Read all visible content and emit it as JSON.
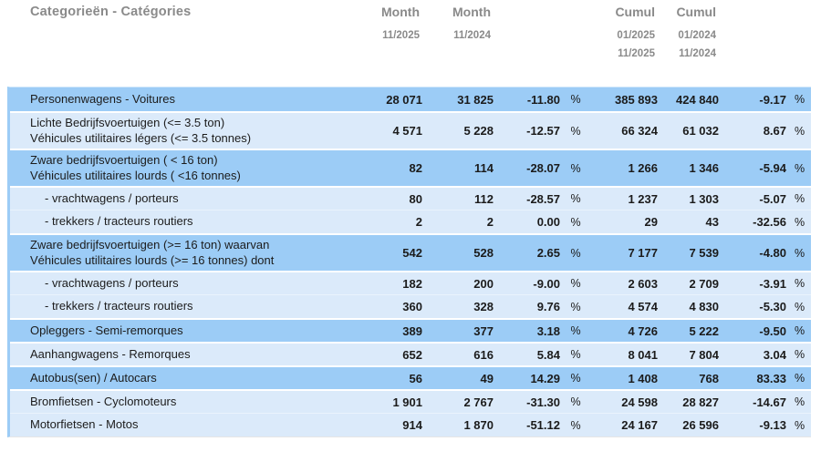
{
  "header": {
    "category_label": "Categorieën - Catégories",
    "percent_symbol": "%",
    "columns": [
      {
        "title": "Month",
        "sub": [
          "11/2025"
        ]
      },
      {
        "title": "Month",
        "sub": [
          "11/2024"
        ]
      },
      {
        "title": "Cumul",
        "sub": [
          "01/2025",
          "11/2025"
        ]
      },
      {
        "title": "Cumul",
        "sub": [
          "01/2024",
          "11/2024"
        ]
      }
    ]
  },
  "colors": {
    "row_dark": "#9cccf6",
    "row_light": "#dbeafa",
    "accent_strip": "#9cccf6",
    "header_text": "#8a8a8a",
    "data_text": "#1b1b1b"
  },
  "rows": [
    {
      "label_lines": [
        "Personenwagens - Voitures"
      ],
      "indent": false,
      "shade": "dark",
      "month_current": "28 071",
      "month_previous": "31 825",
      "month_pct": "-11.80",
      "cumul_current": "385 893",
      "cumul_previous": "424 840",
      "cumul_pct": "-9.17"
    },
    {
      "label_lines": [
        "Lichte Bedrijfsvoertuigen (<= 3.5 ton)",
        "Véhicules utilitaires légers (<= 3.5 tonnes)"
      ],
      "indent": false,
      "shade": "light",
      "month_current": "4 571",
      "month_previous": "5 228",
      "month_pct": "-12.57",
      "cumul_current": "66 324",
      "cumul_previous": "61 032",
      "cumul_pct": "8.67"
    },
    {
      "label_lines": [
        "Zware bedrijfsvoertuigen ( < 16 ton)",
        "Véhicules utilitaires lourds ( <16 tonnes)"
      ],
      "indent": false,
      "shade": "dark",
      "month_current": "82",
      "month_previous": "114",
      "month_pct": "-28.07",
      "cumul_current": "1 266",
      "cumul_previous": "1 346",
      "cumul_pct": "-5.94"
    },
    {
      "label_lines": [
        "- vrachtwagens / porteurs"
      ],
      "indent": true,
      "shade": "light",
      "month_current": "80",
      "month_previous": "112",
      "month_pct": "-28.57",
      "cumul_current": "1 237",
      "cumul_previous": "1 303",
      "cumul_pct": "-5.07"
    },
    {
      "label_lines": [
        "- trekkers / tracteurs routiers"
      ],
      "indent": true,
      "shade": "light",
      "month_current": "2",
      "month_previous": "2",
      "month_pct": "0.00",
      "cumul_current": "29",
      "cumul_previous": "43",
      "cumul_pct": "-32.56"
    },
    {
      "label_lines": [
        "Zware bedrijfsvoertuigen (>= 16 ton) waarvan",
        "Véhicules utilitaires lourds (>= 16 tonnes) dont"
      ],
      "indent": false,
      "shade": "dark",
      "month_current": "542",
      "month_previous": "528",
      "month_pct": "2.65",
      "cumul_current": "7 177",
      "cumul_previous": "7 539",
      "cumul_pct": "-4.80"
    },
    {
      "label_lines": [
        "- vrachtwagens / porteurs"
      ],
      "indent": true,
      "shade": "light",
      "month_current": "182",
      "month_previous": "200",
      "month_pct": "-9.00",
      "cumul_current": "2 603",
      "cumul_previous": "2 709",
      "cumul_pct": "-3.91"
    },
    {
      "label_lines": [
        "- trekkers / tracteurs routiers"
      ],
      "indent": true,
      "shade": "light",
      "month_current": "360",
      "month_previous": "328",
      "month_pct": "9.76",
      "cumul_current": "4 574",
      "cumul_previous": "4 830",
      "cumul_pct": "-5.30"
    },
    {
      "label_lines": [
        "Opleggers - Semi-remorques"
      ],
      "indent": false,
      "shade": "dark",
      "month_current": "389",
      "month_previous": "377",
      "month_pct": "3.18",
      "cumul_current": "4 726",
      "cumul_previous": "5 222",
      "cumul_pct": "-9.50"
    },
    {
      "label_lines": [
        "Aanhangwagens - Remorques"
      ],
      "indent": false,
      "shade": "light",
      "month_current": "652",
      "month_previous": "616",
      "month_pct": "5.84",
      "cumul_current": "8 041",
      "cumul_previous": "7 804",
      "cumul_pct": "3.04"
    },
    {
      "label_lines": [
        "Autobus(sen) / Autocars"
      ],
      "indent": false,
      "shade": "dark",
      "month_current": "56",
      "month_previous": "49",
      "month_pct": "14.29",
      "cumul_current": "1 408",
      "cumul_previous": "768",
      "cumul_pct": "83.33"
    },
    {
      "label_lines": [
        "Bromfietsen - Cyclomoteurs"
      ],
      "indent": false,
      "shade": "light",
      "month_current": "1 901",
      "month_previous": "2 767",
      "month_pct": "-31.30",
      "cumul_current": "24 598",
      "cumul_previous": "28 827",
      "cumul_pct": "-14.67"
    },
    {
      "label_lines": [
        "Motorfietsen - Motos"
      ],
      "indent": false,
      "shade": "light",
      "month_current": "914",
      "month_previous": "1 870",
      "month_pct": "-51.12",
      "cumul_current": "24 167",
      "cumul_previous": "26 596",
      "cumul_pct": "-9.13"
    }
  ]
}
